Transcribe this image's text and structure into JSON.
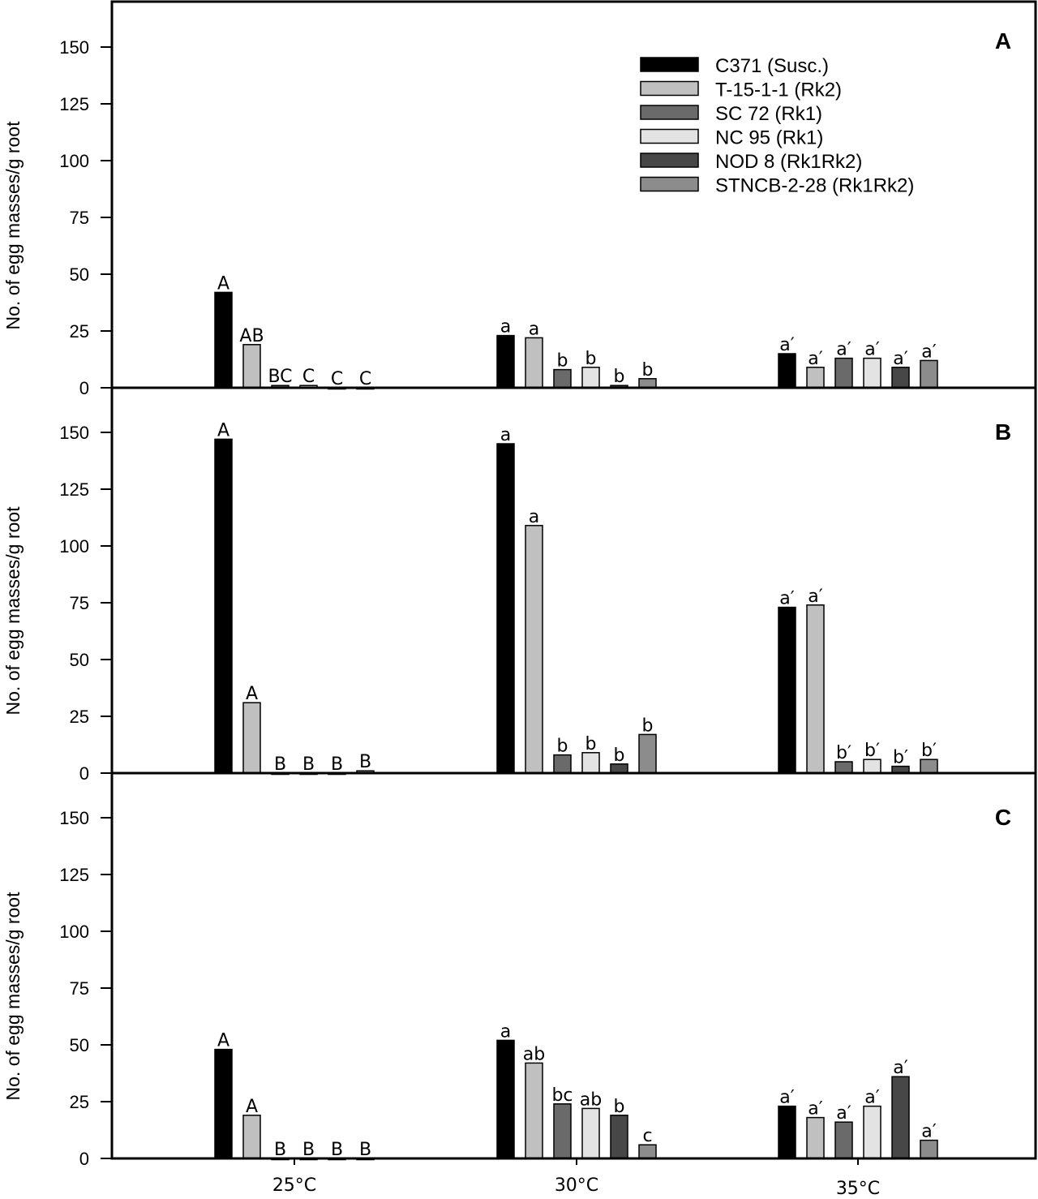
{
  "chart_data": {
    "type": "bar",
    "title": "",
    "xlabel": "",
    "ylabel": "No. of egg masses/g root",
    "ylim": [
      0,
      170
    ],
    "yticks": [
      0,
      25,
      50,
      75,
      100,
      125,
      150
    ],
    "categories": [
      "25°C",
      "30°C",
      "35°C"
    ],
    "legend": {
      "placement": "top-right of panel A",
      "entries": [
        {
          "name": "C371 (Susc.)",
          "color": "#000000"
        },
        {
          "name": "T-15-1-1 (Rk2)",
          "color": "#c0c0c0"
        },
        {
          "name": "SC 72 (Rk1)",
          "color": "#6a6a6a"
        },
        {
          "name": "NC 95 (Rk1)",
          "color": "#e3e3e3"
        },
        {
          "name": "NOD 8 (Rk1Rk2)",
          "color": "#474747"
        },
        {
          "name": "STNCB-2-28 (Rk1Rk2)",
          "color": "#8c8c8c"
        }
      ]
    },
    "panels": [
      {
        "label": "A",
        "series": [
          {
            "name": "C371 (Susc.)",
            "values": [
              42,
              23,
              15
            ],
            "letters": [
              "A",
              "a",
              "a′"
            ]
          },
          {
            "name": "T-15-1-1 (Rk2)",
            "values": [
              19,
              22,
              9
            ],
            "letters": [
              "AB",
              "a",
              "a′"
            ]
          },
          {
            "name": "SC 72 (Rk1)",
            "values": [
              1,
              8,
              13
            ],
            "letters": [
              "BC",
              "b",
              "a′"
            ]
          },
          {
            "name": "NC 95 (Rk1)",
            "values": [
              1,
              9,
              13
            ],
            "letters": [
              "C",
              "b",
              "a′"
            ]
          },
          {
            "name": "NOD 8 (Rk1Rk2)",
            "values": [
              0,
              1,
              9
            ],
            "letters": [
              "C",
              "b",
              "a′"
            ]
          },
          {
            "name": "STNCB-2-28 (Rk1Rk2)",
            "values": [
              0,
              4,
              12
            ],
            "letters": [
              "C",
              "b",
              "a′"
            ]
          }
        ]
      },
      {
        "label": "B",
        "series": [
          {
            "name": "C371 (Susc.)",
            "values": [
              147,
              145,
              73
            ],
            "letters": [
              "A",
              "a",
              "a′"
            ]
          },
          {
            "name": "T-15-1-1 (Rk2)",
            "values": [
              31,
              109,
              74
            ],
            "letters": [
              "A",
              "a",
              "a′"
            ]
          },
          {
            "name": "SC 72 (Rk1)",
            "values": [
              0,
              8,
              5
            ],
            "letters": [
              "B",
              "b",
              "b′"
            ]
          },
          {
            "name": "NC 95 (Rk1)",
            "values": [
              0,
              9,
              6
            ],
            "letters": [
              "B",
              "b",
              "b′"
            ]
          },
          {
            "name": "NOD 8 (Rk1Rk2)",
            "values": [
              0,
              4,
              3
            ],
            "letters": [
              "B",
              "b",
              "b′"
            ]
          },
          {
            "name": "STNCB-2-28 (Rk1Rk2)",
            "values": [
              1,
              17,
              6
            ],
            "letters": [
              "B",
              "b",
              "b′"
            ]
          }
        ]
      },
      {
        "label": "C",
        "series": [
          {
            "name": "C371 (Susc.)",
            "values": [
              48,
              52,
              23
            ],
            "letters": [
              "A",
              "a",
              "a′"
            ]
          },
          {
            "name": "T-15-1-1 (Rk2)",
            "values": [
              19,
              42,
              18
            ],
            "letters": [
              "A",
              "ab",
              "a′"
            ]
          },
          {
            "name": "SC 72 (Rk1)",
            "values": [
              0,
              24,
              16
            ],
            "letters": [
              "B",
              "bc",
              "a′"
            ]
          },
          {
            "name": "NC 95 (Rk1)",
            "values": [
              0,
              22,
              23
            ],
            "letters": [
              "B",
              "ab",
              "a′"
            ]
          },
          {
            "name": "NOD 8 (Rk1Rk2)",
            "values": [
              0,
              19,
              36
            ],
            "letters": [
              "B",
              "b",
              "a′"
            ]
          },
          {
            "name": "STNCB-2-28 (Rk1Rk2)",
            "values": [
              0,
              6,
              8
            ],
            "letters": [
              "B",
              "c",
              "a′"
            ]
          }
        ]
      }
    ]
  }
}
